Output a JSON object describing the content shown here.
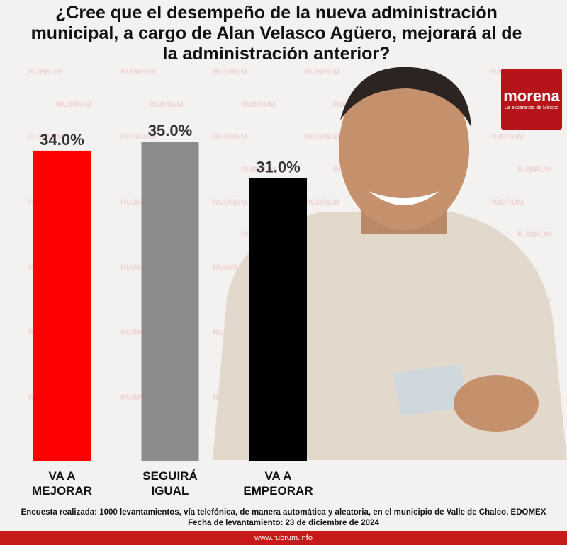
{
  "chart_data": {
    "type": "bar",
    "title": "¿Cree que el desempeño de la nueva administración municipal, a cargo de Alan Velasco Agüero, mejorará al de la administración anterior?",
    "categories": [
      "VA A MEJORAR",
      "SEGUIRÁ IGUAL",
      "VA A EMPEORAR"
    ],
    "values": [
      34.0,
      35.0,
      31.0
    ],
    "value_labels": [
      "34.0%",
      "35.0%",
      "31.0%"
    ],
    "colors": [
      "#ff0000",
      "#8c8c8c",
      "#000000"
    ],
    "ylim": [
      0,
      35
    ]
  },
  "watermark": "RUBRUM",
  "logo": {
    "name": "morena",
    "tagline": "La esperanza de México"
  },
  "footer": {
    "note": "Encuesta realizada: 1000 levantamientos, vía telefónica, de manera automática y aleatoria, en el municipio de Valle de Chalco, EDOMEX",
    "date": "Fecha de levantamiento: 23 de diciembre de 2024",
    "website": "www.rubrum.info"
  }
}
